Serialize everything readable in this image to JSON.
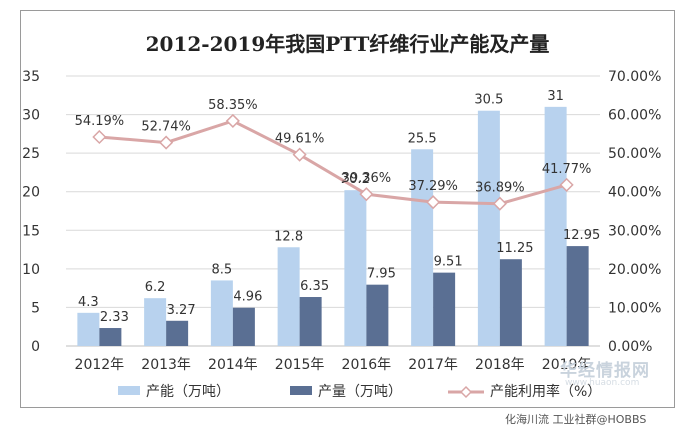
{
  "chart_data": {
    "type": "bar+line",
    "title": "2012-2019年我国PTT纤维行业产能及产量",
    "categories": [
      "2012年",
      "2013年",
      "2014年",
      "2015年",
      "2016年",
      "2017年",
      "2018年",
      "2019年"
    ],
    "series": [
      {
        "name": "产能（万吨）",
        "type": "bar",
        "axis": "left",
        "color": "#b8d2ee",
        "values": [
          4.3,
          6.2,
          8.5,
          12.8,
          20.2,
          25.5,
          30.5,
          31
        ],
        "labels": [
          "4.3",
          "6.2",
          "8.5",
          "12.8",
          "20.2",
          "25.5",
          "30.5",
          "31"
        ]
      },
      {
        "name": "产量（万吨）",
        "type": "bar",
        "axis": "left",
        "color": "#5a6f93",
        "values": [
          2.33,
          3.27,
          4.96,
          6.35,
          7.95,
          9.51,
          11.25,
          12.95
        ],
        "labels": [
          "2.33",
          "3.27",
          "4.96",
          "6.35",
          "7.95",
          "9.51",
          "11.25",
          "12.95"
        ]
      },
      {
        "name": "产能利用率（%）",
        "type": "line",
        "axis": "right",
        "color": "#d9a6a6",
        "values": [
          54.19,
          52.74,
          58.35,
          49.61,
          39.36,
          37.29,
          36.89,
          41.77
        ],
        "labels": [
          "54.19%",
          "52.74%",
          "58.35%",
          "49.61%",
          "39.36%",
          "37.29%",
          "36.89%",
          "41.77%"
        ]
      }
    ],
    "y_left": {
      "min": 0,
      "max": 35,
      "ticks": [
        "0",
        "5",
        "10",
        "15",
        "20",
        "25",
        "30",
        "35"
      ]
    },
    "y_right": {
      "min": 0,
      "max": 70,
      "ticks": [
        "0.00%",
        "10.00%",
        "20.00%",
        "30.00%",
        "40.00%",
        "50.00%",
        "60.00%",
        "70.00%"
      ]
    },
    "grid": true,
    "legend_position": "bottom"
  },
  "watermark": {
    "site": "华经情报网",
    "url": "www.huaon.com",
    "credit": "化海川流 工业社群@HOBBS"
  }
}
